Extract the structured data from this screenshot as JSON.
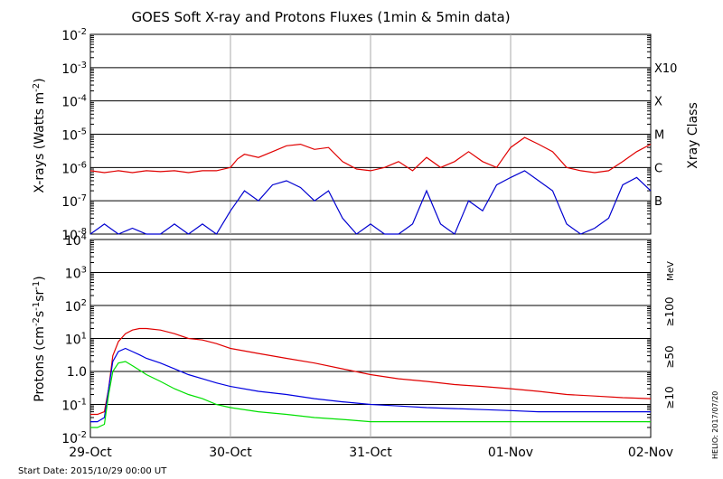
{
  "title": "GOES Soft X-ray and Protons Fluxes   (1min & 5min data)",
  "start_date": "Start Date: 2015/10/29 00:00 UT",
  "credit": "HELIO: 2017/07/20",
  "colors": {
    "xray_long": "#e00000",
    "xray_short": "#0000d0",
    "p10": "#e00000",
    "p50": "#0000e0",
    "p100": "#00e000",
    "grid": "#000000",
    "day_line": "#aaaaaa"
  },
  "chart_data": [
    {
      "type": "line",
      "panel": "xray",
      "ylabel": "X-rays (Watts m^-2)",
      "yscale": "log",
      "ylim": [
        1e-08,
        0.01
      ],
      "y_ticks": [
        {
          "mant": "10",
          "exp": "-2"
        },
        {
          "mant": "10",
          "exp": "-3"
        },
        {
          "mant": "10",
          "exp": "-4"
        },
        {
          "mant": "10",
          "exp": "-5"
        },
        {
          "mant": "10",
          "exp": "-6"
        },
        {
          "mant": "10",
          "exp": "-7"
        },
        {
          "mant": "10",
          "exp": "-8"
        }
      ],
      "right_axis_label": "Xray Class",
      "classes": [
        {
          "label": "X10",
          "value": 0.001
        },
        {
          "label": "X",
          "value": 0.0001
        },
        {
          "label": "M",
          "value": 1e-05
        },
        {
          "label": "C",
          "value": 1e-06
        },
        {
          "label": "B",
          "value": 1e-07
        }
      ],
      "x_unit": "days since 2015-10-29 00:00 UT",
      "xlim": [
        0,
        4
      ],
      "series": [
        {
          "key": "long",
          "color": "#e00000",
          "x": [
            0,
            0.1,
            0.2,
            0.3,
            0.4,
            0.5,
            0.6,
            0.7,
            0.8,
            0.9,
            1.0,
            1.05,
            1.1,
            1.2,
            1.3,
            1.4,
            1.5,
            1.6,
            1.7,
            1.8,
            1.9,
            2.0,
            2.1,
            2.2,
            2.3,
            2.4,
            2.5,
            2.6,
            2.7,
            2.8,
            2.9,
            3.0,
            3.1,
            3.2,
            3.3,
            3.4,
            3.5,
            3.6,
            3.7,
            3.8,
            3.9,
            4.0
          ],
          "y": [
            8e-07,
            7e-07,
            8e-07,
            7e-07,
            8e-07,
            7.5e-07,
            8e-07,
            7e-07,
            8e-07,
            8e-07,
            1e-06,
            1.8e-06,
            2.5e-06,
            2e-06,
            3e-06,
            4.5e-06,
            5e-06,
            3.5e-06,
            4e-06,
            1.5e-06,
            9e-07,
            8e-07,
            1e-06,
            1.5e-06,
            8e-07,
            2e-06,
            1e-06,
            1.5e-06,
            3e-06,
            1.5e-06,
            1e-06,
            4e-06,
            8e-06,
            5e-06,
            3e-06,
            1e-06,
            8e-07,
            7e-07,
            8e-07,
            1.5e-06,
            3e-06,
            5e-06
          ]
        },
        {
          "key": "short",
          "color": "#0000d0",
          "x": [
            0,
            0.1,
            0.2,
            0.3,
            0.4,
            0.5,
            0.6,
            0.7,
            0.8,
            0.9,
            1.0,
            1.05,
            1.1,
            1.2,
            1.3,
            1.4,
            1.5,
            1.6,
            1.7,
            1.8,
            1.9,
            2.0,
            2.1,
            2.2,
            2.3,
            2.4,
            2.5,
            2.6,
            2.7,
            2.8,
            2.9,
            3.0,
            3.1,
            3.2,
            3.3,
            3.4,
            3.5,
            3.6,
            3.7,
            3.8,
            3.9,
            4.0
          ],
          "y": [
            1e-08,
            2e-08,
            1e-08,
            1.5e-08,
            1e-08,
            1e-08,
            2e-08,
            1e-08,
            2e-08,
            1e-08,
            5e-08,
            1e-07,
            2e-07,
            1e-07,
            3e-07,
            4e-07,
            2.5e-07,
            1e-07,
            2e-07,
            3e-08,
            1e-08,
            2e-08,
            1e-08,
            1e-08,
            2e-08,
            2e-07,
            2e-08,
            1e-08,
            1e-07,
            5e-08,
            3e-07,
            5e-07,
            8e-07,
            4e-07,
            2e-07,
            2e-08,
            1e-08,
            1.5e-08,
            3e-08,
            3e-07,
            5e-07,
            2e-07
          ]
        }
      ]
    },
    {
      "type": "line",
      "panel": "protons",
      "ylabel": "Protons (cm^-2 s^-1 sr^-1)",
      "yscale": "log",
      "ylim": [
        0.01,
        10000.0
      ],
      "y_ticks": [
        {
          "mant": "10",
          "exp": "4"
        },
        {
          "mant": "10",
          "exp": "3"
        },
        {
          "mant": "10",
          "exp": "2"
        },
        {
          "mant": "10",
          "exp": "1"
        },
        {
          "mant": "10",
          "exp": "0",
          "text": "1.0"
        },
        {
          "mant": "10",
          "exp": "-1"
        },
        {
          "mant": "10",
          "exp": "-2"
        }
      ],
      "threshold": 10,
      "energy_unit": "MeV",
      "x_unit": "days since 2015-10-29 00:00 UT",
      "xlim": [
        0,
        4
      ],
      "x_ticks": [
        "29-Oct",
        "30-Oct",
        "31-Oct",
        "01-Nov",
        "02-Nov"
      ],
      "series": [
        {
          "name": "≥10",
          "color": "#e00000",
          "x": [
            0,
            0.05,
            0.1,
            0.13,
            0.16,
            0.2,
            0.25,
            0.3,
            0.35,
            0.4,
            0.5,
            0.6,
            0.7,
            0.8,
            0.9,
            1.0,
            1.2,
            1.4,
            1.6,
            1.8,
            2.0,
            2.2,
            2.4,
            2.6,
            2.8,
            3.0,
            3.2,
            3.4,
            3.6,
            3.8,
            4.0
          ],
          "y": [
            0.05,
            0.05,
            0.06,
            0.3,
            3,
            8,
            14,
            18,
            20,
            20,
            18,
            14,
            10,
            9,
            7,
            5,
            3.5,
            2.5,
            1.8,
            1.2,
            0.8,
            0.6,
            0.5,
            0.4,
            0.35,
            0.3,
            0.25,
            0.2,
            0.18,
            0.16,
            0.15
          ]
        },
        {
          "name": "≥50",
          "color": "#0000e0",
          "x": [
            0,
            0.05,
            0.1,
            0.13,
            0.16,
            0.2,
            0.25,
            0.3,
            0.35,
            0.4,
            0.5,
            0.6,
            0.7,
            0.8,
            0.9,
            1.0,
            1.2,
            1.4,
            1.6,
            1.8,
            2.0,
            2.2,
            2.4,
            2.6,
            2.8,
            3.0,
            3.2,
            3.4,
            3.6,
            3.8,
            4.0
          ],
          "y": [
            0.03,
            0.03,
            0.04,
            0.3,
            2,
            4,
            5,
            4,
            3.2,
            2.5,
            1.8,
            1.2,
            0.8,
            0.6,
            0.45,
            0.35,
            0.25,
            0.2,
            0.15,
            0.12,
            0.1,
            0.09,
            0.08,
            0.075,
            0.07,
            0.065,
            0.06,
            0.06,
            0.06,
            0.06,
            0.06
          ]
        },
        {
          "name": "≥100",
          "color": "#00e000",
          "x": [
            0,
            0.05,
            0.1,
            0.13,
            0.16,
            0.2,
            0.25,
            0.3,
            0.35,
            0.4,
            0.5,
            0.6,
            0.7,
            0.8,
            0.9,
            1.0,
            1.2,
            1.4,
            1.6,
            1.8,
            2.0,
            2.2,
            2.4,
            2.6,
            2.8,
            3.0,
            3.2,
            3.4,
            3.6,
            3.8,
            4.0
          ],
          "y": [
            0.02,
            0.02,
            0.025,
            0.2,
            1,
            1.8,
            2,
            1.5,
            1.1,
            0.8,
            0.5,
            0.3,
            0.2,
            0.15,
            0.1,
            0.08,
            0.06,
            0.05,
            0.04,
            0.035,
            0.03,
            0.03,
            0.03,
            0.03,
            0.03,
            0.03,
            0.03,
            0.03,
            0.03,
            0.03,
            0.03
          ]
        }
      ]
    }
  ]
}
